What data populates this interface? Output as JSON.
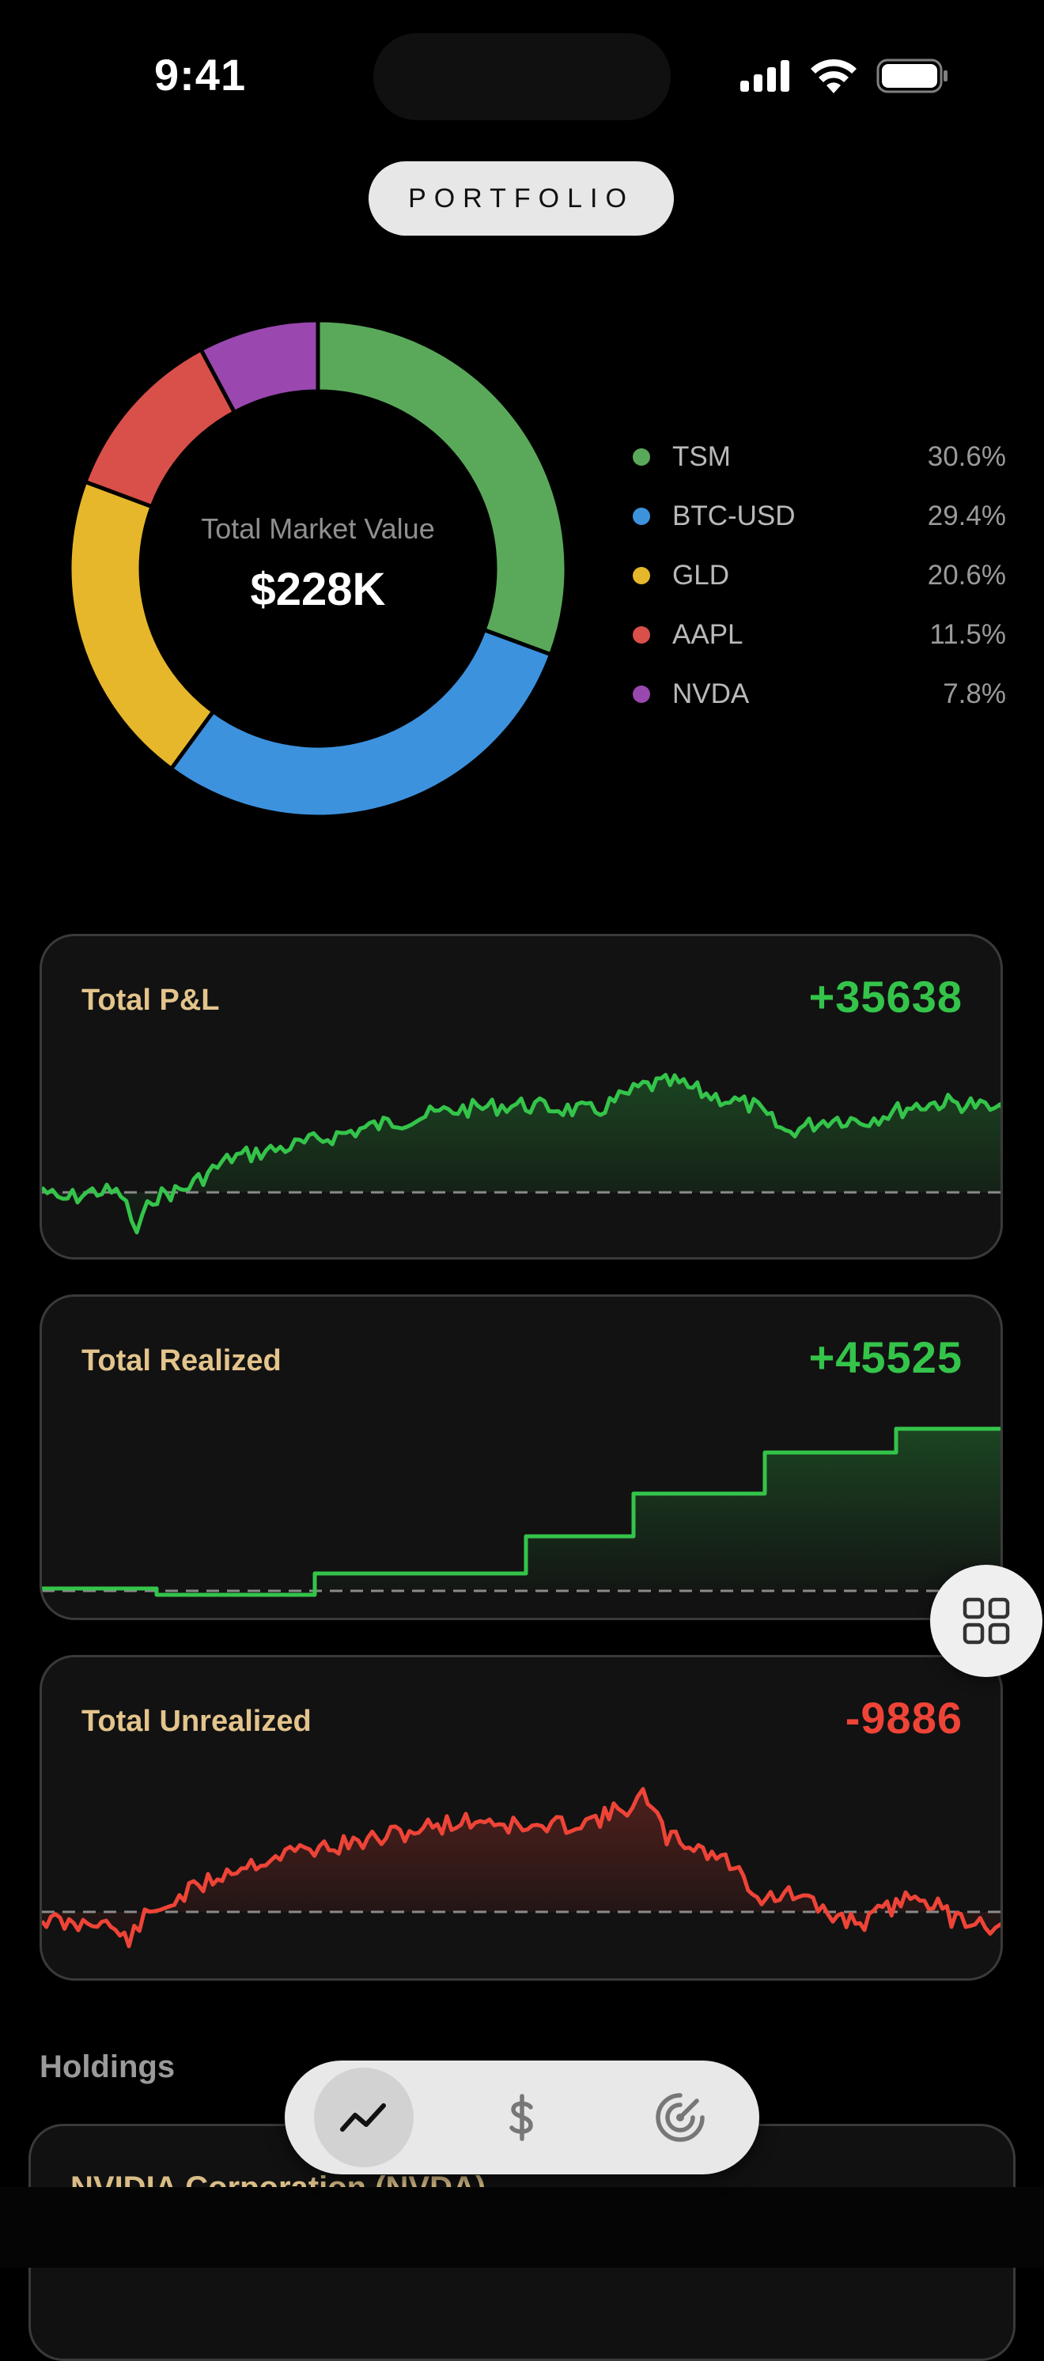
{
  "status": {
    "time": "9:41"
  },
  "header": {
    "title": "PORTFOLIO"
  },
  "donut": {
    "label": "Total Market Value",
    "value": "$228K"
  },
  "allocation": [
    {
      "name": "TSM",
      "percent": "30.6%",
      "value": 30.6,
      "color": "#5aa95a"
    },
    {
      "name": "BTC-USD",
      "percent": "29.4%",
      "value": 29.4,
      "color": "#3d92de"
    },
    {
      "name": "GLD",
      "percent": "20.6%",
      "value": 20.6,
      "color": "#e6b72a"
    },
    {
      "name": "AAPL",
      "percent": "11.5%",
      "value": 11.5,
      "color": "#d94f4a"
    },
    {
      "name": "NVDA",
      "percent": "7.8%",
      "value": 7.8,
      "color": "#9a47b0"
    }
  ],
  "cards": [
    {
      "title": "Total P&L",
      "value": "+35638",
      "tone": "positive"
    },
    {
      "title": "Total Realized",
      "value": "+45525",
      "tone": "positive"
    },
    {
      "title": "Total Unrealized",
      "value": "-9886",
      "tone": "negative"
    }
  ],
  "colors": {
    "positive": "#34c44a",
    "negative": "#ee4437",
    "accent_title": "#e3c48c"
  },
  "holdings": {
    "heading": "Holdings",
    "first_item": "NVIDIA Corporation (NVDA)"
  },
  "tabbar": {
    "tabs": [
      {
        "icon": "chart-line-icon",
        "active": true
      },
      {
        "icon": "dollar-icon",
        "active": false
      },
      {
        "icon": "radar-icon",
        "active": false
      }
    ]
  }
}
